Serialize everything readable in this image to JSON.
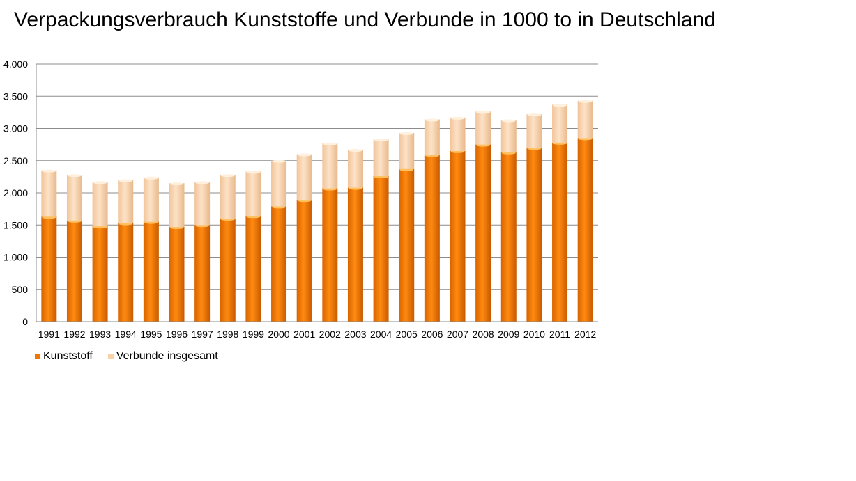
{
  "title": "Verpackungsverbrauch  Kunststoffe und Verbunde in 1000 to in Deutschland",
  "chart_data": {
    "type": "bar",
    "stacked": true,
    "title": "Verpackungsverbrauch  Kunststoffe und Verbunde in 1000 to in Deutschland",
    "xlabel": "",
    "ylabel": "",
    "categories": [
      "1991",
      "1992",
      "1993",
      "1994",
      "1995",
      "1996",
      "1997",
      "1998",
      "1999",
      "2000",
      "2001",
      "2002",
      "2003",
      "2004",
      "2005",
      "2006",
      "2007",
      "2008",
      "2009",
      "2010",
      "2011",
      "2012"
    ],
    "series": [
      {
        "name": "Kunststoff",
        "color": "#F07800",
        "values": [
          1630,
          1570,
          1480,
          1530,
          1550,
          1470,
          1500,
          1600,
          1640,
          1790,
          1890,
          2070,
          2080,
          2260,
          2370,
          2590,
          2650,
          2750,
          2630,
          2700,
          2780,
          2850
        ]
      },
      {
        "name": "Verbunde insgesamt",
        "color": "#FAD2A8",
        "values": [
          720,
          710,
          690,
          670,
          690,
          680,
          670,
          680,
          690,
          710,
          710,
          700,
          590,
          570,
          560,
          550,
          520,
          510,
          500,
          520,
          590,
          580
        ]
      }
    ],
    "ylim": [
      0,
      4000
    ],
    "yticks": [
      0,
      500,
      1000,
      1500,
      2000,
      2500,
      3000,
      3500,
      4000
    ],
    "ytick_labels": [
      "0",
      "500",
      "1.000",
      "1.500",
      "2.000",
      "2.500",
      "3.000",
      "3.500",
      "4.000"
    ],
    "grid": true,
    "legend_position": "bottom-left"
  },
  "legend": {
    "items": [
      {
        "label": "Kunststoff",
        "color": "#F07800"
      },
      {
        "label": "Verbunde insgesamt",
        "color": "#FAD2A8"
      }
    ]
  }
}
